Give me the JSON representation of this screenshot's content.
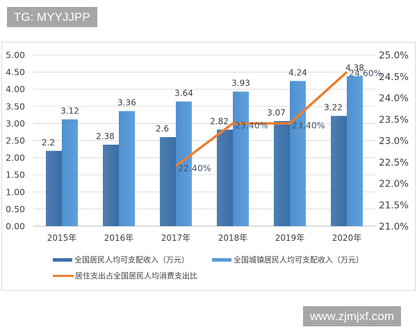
{
  "watermarks": {
    "top": "TG: MYYJJPP",
    "bottom": "www.zjmjxf.com"
  },
  "colors": {
    "series1": "#3f74aa",
    "series2": "#5b9bd5",
    "line": "#ed7d31",
    "grid": "#e0e0e0",
    "axis_text": "#404040"
  },
  "chart_data": {
    "type": "bar",
    "combo": "bar+line (secondary axis)",
    "title": "",
    "categories": [
      "2015年",
      "2016年",
      "2017年",
      "2018年",
      "2019年",
      "2020年"
    ],
    "series": [
      {
        "name": "全国居民人均可支配收入（万元）",
        "type": "bar",
        "axis": "left",
        "values": [
          2.2,
          2.38,
          2.6,
          2.82,
          3.07,
          3.22
        ],
        "labels": [
          "2.2",
          "2.38",
          "2.6",
          "2.82",
          "3.07",
          "3.22"
        ]
      },
      {
        "name": "全国城镇居民人均可支配收入（万元）",
        "type": "bar",
        "axis": "left",
        "values": [
          3.12,
          3.36,
          3.64,
          3.93,
          4.24,
          4.38
        ],
        "labels": [
          "3.12",
          "3.36",
          "3.64",
          "3.93",
          "4.24",
          "4.38"
        ]
      },
      {
        "name": "居住支出占全国居民人均消费支出比",
        "type": "line",
        "axis": "right",
        "values": [
          null,
          null,
          22.4,
          23.4,
          23.4,
          24.6
        ],
        "labels": [
          "",
          "",
          "22.40%",
          "23.40%",
          "23.40%",
          "24.60%"
        ]
      }
    ],
    "left_axis": {
      "ylim": [
        0,
        5
      ],
      "ticks": [
        "0.00",
        "0.50",
        "1.00",
        "1.50",
        "2.00",
        "2.50",
        "3.00",
        "3.50",
        "4.00",
        "4.50",
        "5.00"
      ]
    },
    "right_axis": {
      "ylim": [
        21.0,
        25.0
      ],
      "ticks": [
        "21.0%",
        "21.5%",
        "22.0%",
        "22.5%",
        "23.0%",
        "23.5%",
        "24.0%",
        "24.5%",
        "25.0%"
      ]
    },
    "xlabel": "",
    "ylabel": "",
    "grid": true,
    "legend_position": "bottom"
  }
}
